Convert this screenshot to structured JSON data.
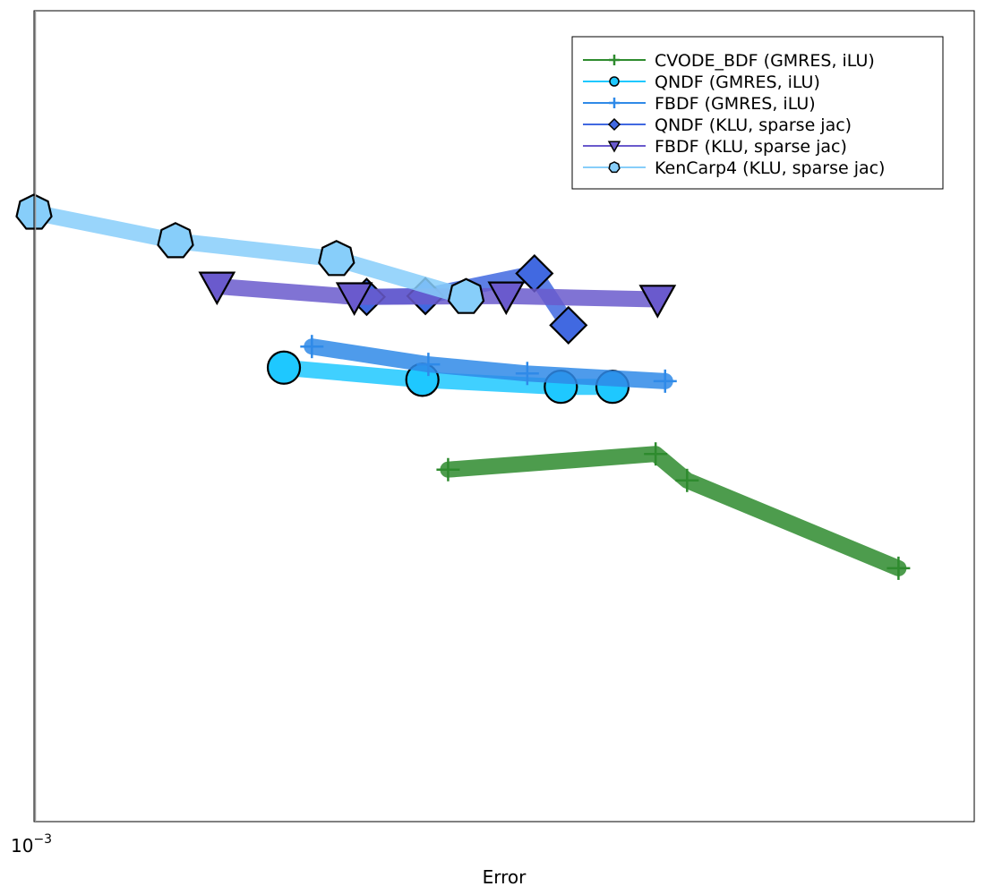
{
  "chart_data": {
    "type": "line",
    "title": "",
    "xlabel": "Error",
    "ylabel": "",
    "x_scale": "log",
    "y_scale": "log",
    "xlim": [
      0.001,
      0.1
    ],
    "ylim": [
      0.0001,
      10
    ],
    "x_tick_labels": [
      {
        "value": 0.001,
        "base": "10",
        "exponent": "−3"
      }
    ],
    "grid": false,
    "legend_position": "top-right",
    "series": [
      {
        "name": "CVODE_BDF (GMRES, iLU)",
        "color": "#2e8b2e",
        "marker": "cross",
        "x": [
          0.0076,
          0.021,
          0.0245,
          0.069
        ],
        "y": [
          0.0148,
          0.0185,
          0.0127,
          0.00365
        ]
      },
      {
        "name": "QNDF (GMRES, iLU)",
        "color": "#1ec8ff",
        "marker": "circle",
        "x": [
          0.0034,
          0.0067,
          0.0132,
          0.017
        ],
        "y": [
          0.063,
          0.053,
          0.048,
          0.048
        ]
      },
      {
        "name": "FBDF (GMRES, iLU)",
        "color": "#2f8ae8",
        "marker": "cross",
        "x": [
          0.0039,
          0.0069,
          0.0112,
          0.022
        ],
        "y": [
          0.085,
          0.066,
          0.058,
          0.052
        ]
      },
      {
        "name": "QNDF (KLU, sparse jac)",
        "color": "#4169e1",
        "marker": "diamond",
        "x": [
          0.0051,
          0.0068,
          0.0116,
          0.0137
        ],
        "y": [
          0.172,
          0.174,
          0.24,
          0.115
        ]
      },
      {
        "name": "FBDF (KLU, sparse jac)",
        "color": "#6a5acd",
        "marker": "triangle-down",
        "x": [
          0.00245,
          0.0048,
          0.0101,
          0.0212
        ],
        "y": [
          0.2,
          0.172,
          0.174,
          0.166
        ]
      },
      {
        "name": "KenCarp4 (KLU, sparse jac)",
        "color": "#87cefa",
        "marker": "heptagon",
        "x": [
          0.001,
          0.002,
          0.0044,
          0.0083
        ],
        "y": [
          0.57,
          0.38,
          0.295,
          0.172
        ]
      }
    ]
  }
}
